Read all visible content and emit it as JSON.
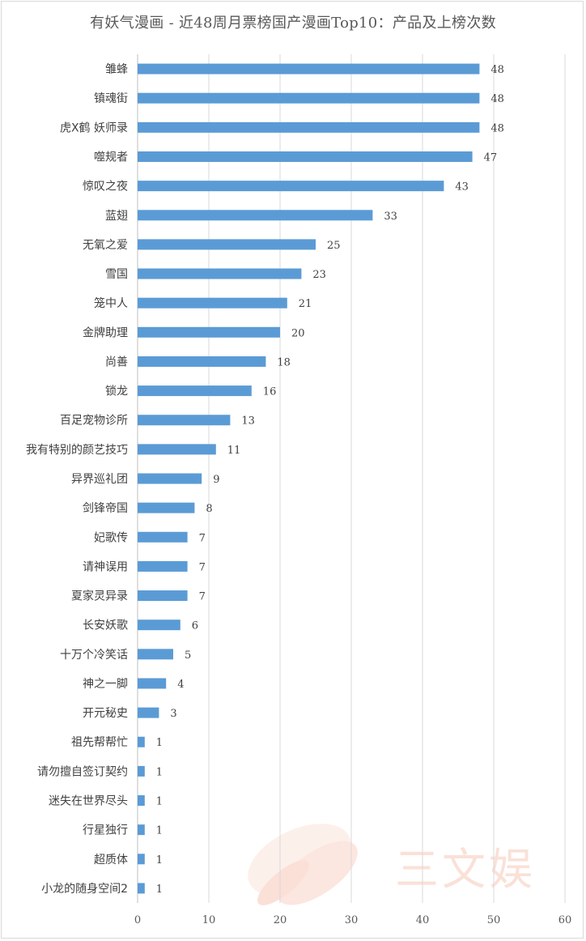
{
  "chart_data": {
    "type": "bar",
    "orientation": "horizontal",
    "title": "有妖气漫画 - 近48周月票榜国产漫画Top10：产品及上榜次数",
    "categories": [
      "雏蜂",
      "镇魂街",
      "虎X鹤 妖师录",
      "噬规者",
      "惊叹之夜",
      "蓝翅",
      "无氧之爱",
      "雪国",
      "笼中人",
      "金牌助理",
      "尚善",
      "锁龙",
      "百足宠物诊所",
      "我有特别的颜艺技巧",
      "异界巡礼团",
      "剑锋帝国",
      "妃歌传",
      "请神误用",
      "夏家灵异录",
      "长安妖歌",
      "十万个冷笑话",
      "神之一脚",
      "开元秘史",
      "祖先帮帮忙",
      "请勿擅自签订契约",
      "迷失在世界尽头",
      "行星独行",
      "超质体",
      "小龙的随身空间2"
    ],
    "values": [
      48,
      48,
      48,
      47,
      43,
      33,
      25,
      23,
      21,
      20,
      18,
      16,
      13,
      11,
      9,
      8,
      7,
      7,
      7,
      6,
      5,
      4,
      3,
      1,
      1,
      1,
      1,
      1,
      1
    ],
    "xlim": [
      0,
      60
    ],
    "xticks": [
      0,
      10,
      20,
      30,
      40,
      50,
      60
    ],
    "grid": true,
    "data_labels": true,
    "bar_color": "#5b9bd5",
    "grid_color": "#d9d9d9",
    "text_color": "#404040"
  },
  "watermark": {
    "text": "三文娱",
    "color": "#f6c9b8"
  }
}
